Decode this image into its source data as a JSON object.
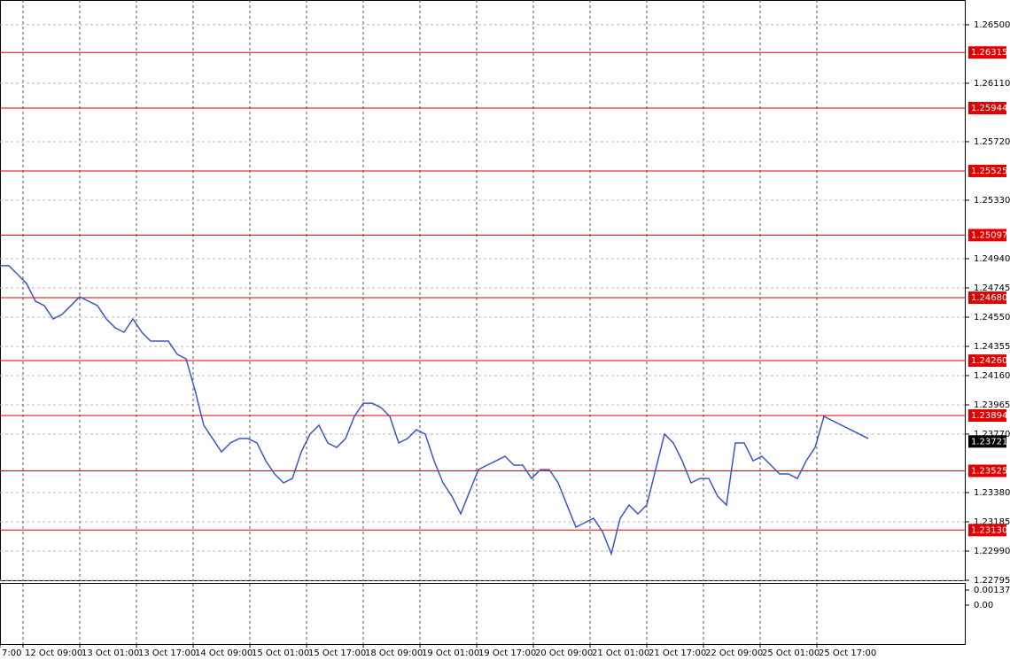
{
  "chart_data": {
    "type": "line",
    "series": [
      {
        "color": "#3a56c8",
        "values": [
          1.24893,
          1.24893,
          1.24834,
          1.24774,
          1.24656,
          1.24627,
          1.24538,
          1.24568,
          1.24627,
          1.24686,
          1.24656,
          1.24627,
          1.24538,
          1.24479,
          1.24449,
          1.24538,
          1.24449,
          1.2439,
          1.2439,
          1.2439,
          1.24302,
          1.24272,
          1.24065,
          1.23829,
          1.2374,
          1.23651,
          1.23711,
          1.2374,
          1.2374,
          1.23711,
          1.23592,
          1.23504,
          1.23445,
          1.23474,
          1.23651,
          1.2377,
          1.23829,
          1.23711,
          1.23681,
          1.2374,
          1.23888,
          1.23976,
          1.23976,
          1.23947,
          1.23888,
          1.23711,
          1.2374,
          1.23799,
          1.2377,
          1.23592,
          1.23445,
          1.23356,
          1.23238,
          1.23386,
          1.23533,
          1.23563,
          1.23592,
          1.23622,
          1.23563,
          1.23563,
          1.23474,
          1.23533,
          1.23533,
          1.23445,
          1.23297,
          1.23149,
          1.23179,
          1.23208,
          1.2312,
          1.22972,
          1.23208,
          1.23297,
          1.23238,
          1.23297,
          1.23533,
          1.2377,
          1.23711,
          1.23592,
          1.23445,
          1.23474,
          1.23474,
          1.23356,
          1.23297,
          1.23711,
          1.23711,
          1.23592,
          1.23622,
          1.23563,
          1.23504,
          1.23504,
          1.23474,
          1.23592,
          1.23681,
          1.23888,
          1.23858,
          1.23829,
          1.23799,
          1.2377,
          1.2374
        ]
      }
    ],
    "xlim": [
      0,
      109
    ],
    "xticks": [
      {
        "value": 0,
        "label": "7:00"
      },
      {
        "value": 2.6,
        "label": "12 Oct 09:00"
      },
      {
        "value": 9.0,
        "label": "13 Oct 01:00"
      },
      {
        "value": 15.4,
        "label": "13 Oct 17:00"
      },
      {
        "value": 21.8,
        "label": "14 Oct 09:00"
      },
      {
        "value": 28.2,
        "label": "15 Oct 01:00"
      },
      {
        "value": 34.6,
        "label": "15 Oct 17:00"
      },
      {
        "value": 41.0,
        "label": "18 Oct 09:00"
      },
      {
        "value": 47.4,
        "label": "19 Oct 01:00"
      },
      {
        "value": 53.8,
        "label": "19 Oct 17:00"
      },
      {
        "value": 60.2,
        "label": "20 Oct 09:00"
      },
      {
        "value": 66.6,
        "label": "21 Oct 01:00"
      },
      {
        "value": 73.0,
        "label": "21 Oct 17:00"
      },
      {
        "value": 79.4,
        "label": "22 Oct 09:00"
      },
      {
        "value": 85.8,
        "label": "25 Oct 01:00"
      },
      {
        "value": 92.2,
        "label": "25 Oct 17:00"
      }
    ],
    "ylim": [
      1.22795,
      1.26665
    ],
    "yticks": [
      {
        "value": 1.265,
        "label": "1.26500"
      },
      {
        "value": 1.2611,
        "label": "1.26110"
      },
      {
        "value": 1.2572,
        "label": "1.25720"
      },
      {
        "value": 1.2533,
        "label": "1.25330"
      },
      {
        "value": 1.2494,
        "label": "1.24940"
      },
      {
        "value": 1.24745,
        "label": "1.24745"
      },
      {
        "value": 1.2455,
        "label": "1.24550"
      },
      {
        "value": 1.24355,
        "label": "1.24355"
      },
      {
        "value": 1.2416,
        "label": "1.24160"
      },
      {
        "value": 1.23965,
        "label": "1.23965"
      },
      {
        "value": 1.2377,
        "label": "1.23770"
      },
      {
        "value": 1.2338,
        "label": "1.23380"
      },
      {
        "value": 1.23185,
        "label": "1.23185"
      },
      {
        "value": 1.2299,
        "label": "1.22990"
      },
      {
        "value": 1.22795,
        "label": "1.22795"
      }
    ],
    "levels": [
      {
        "value": 1.26315,
        "label": "1.26315"
      },
      {
        "value": 1.25944,
        "label": "1.25944"
      },
      {
        "value": 1.25525,
        "label": "1.25525"
      },
      {
        "value": 1.25097,
        "label": "1.25097"
      },
      {
        "value": 1.2468,
        "label": "1.24680"
      },
      {
        "value": 1.2426,
        "label": "1.24260"
      },
      {
        "value": 1.23894,
        "label": "1.23894"
      },
      {
        "value": 1.23525,
        "label": "1.23525"
      },
      {
        "value": 1.2313,
        "label": "1.23130"
      }
    ],
    "level_color": "#e00000",
    "current_price": {
      "value": 1.23721,
      "label": "1.23721"
    },
    "grid": true,
    "indicator": {
      "ylim": [
        -0.00355,
        0.00194
      ],
      "yticks": [
        0.001373,
        {
          "value": 0,
          "label": "0.00"
        }
      ]
    }
  }
}
